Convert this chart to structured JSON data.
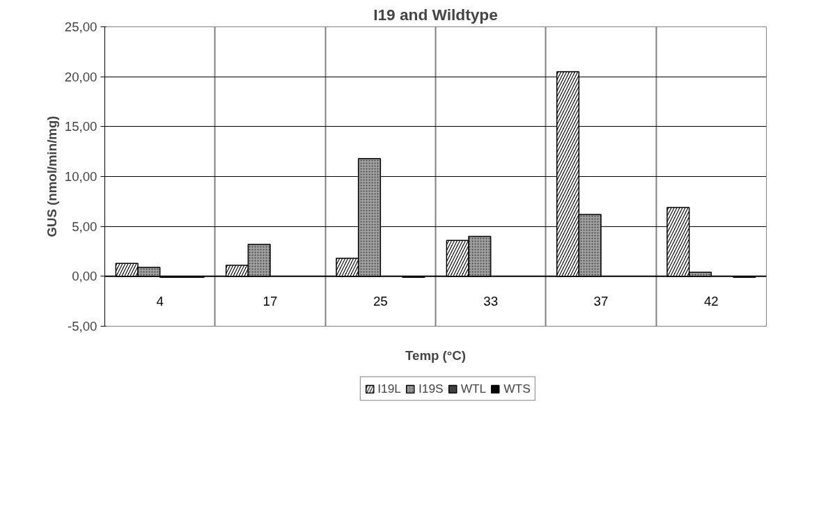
{
  "chart_data": {
    "type": "bar",
    "title": "I19 and Wildtype",
    "xlabel": "Temp (°C)",
    "ylabel": "GUS (nmol/min/mg)",
    "categories": [
      "4",
      "17",
      "25",
      "33",
      "37",
      "42"
    ],
    "series": [
      {
        "name": "I19L",
        "color": "#000000",
        "values": [
          1.3,
          1.1,
          1.8,
          3.6,
          20.5,
          6.9
        ]
      },
      {
        "name": "I19S",
        "color": "#a0a0a0",
        "values": [
          0.9,
          3.2,
          11.8,
          4.0,
          6.2,
          0.4
        ]
      },
      {
        "name": "WTL",
        "color": "#404040",
        "values": [
          -0.1,
          null,
          null,
          null,
          null,
          null
        ]
      },
      {
        "name": "WTS",
        "color": "#000000",
        "values": [
          -0.1,
          null,
          -0.1,
          null,
          null,
          -0.1
        ]
      }
    ],
    "ylim": [
      -5,
      25
    ],
    "yticks": [
      {
        "value": -5,
        "label": "-5,00"
      },
      {
        "value": 0,
        "label": "0,00"
      },
      {
        "value": 5,
        "label": "5,00"
      },
      {
        "value": 10,
        "label": "10,00"
      },
      {
        "value": 15,
        "label": "15,00"
      },
      {
        "value": 20,
        "label": "20,00"
      },
      {
        "value": 25,
        "label": "25,00"
      }
    ],
    "grid": true,
    "legend": "bottom"
  }
}
